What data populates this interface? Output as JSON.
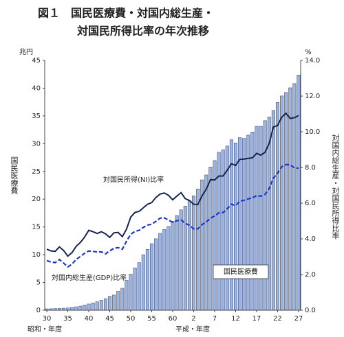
{
  "chart_data": {
    "type": "bar",
    "title": [
      "図１　国民医療費・対国内総生産・",
      "対国民所得比率の年次推移"
    ],
    "y_unit": "兆円",
    "y2_unit": "%",
    "y_label": "国民医療費",
    "y2_label": "対国内総生産・対国民所得比率",
    "x_labels": [
      "昭和・年度",
      "平成・年度"
    ],
    "categories": [
      "30",
      null,
      null,
      null,
      null,
      "35",
      null,
      null,
      null,
      null,
      "40",
      null,
      null,
      null,
      null,
      "45",
      null,
      null,
      null,
      null,
      "50",
      null,
      null,
      null,
      null,
      "55",
      null,
      null,
      null,
      null,
      "60",
      null,
      null,
      null,
      null,
      "2",
      null,
      null,
      null,
      null,
      "7",
      null,
      null,
      null,
      null,
      "12",
      null,
      null,
      null,
      null,
      "17",
      null,
      null,
      null,
      null,
      "22",
      null,
      null,
      null,
      null,
      "27"
    ],
    "ylim": [
      0,
      45
    ],
    "yticks": [
      0,
      5,
      10,
      15,
      20,
      25,
      30,
      35,
      40,
      45
    ],
    "y2lim": [
      0,
      14
    ],
    "y2ticks": [
      {
        "value": 0,
        "label": "0.0"
      },
      {
        "value": 2,
        "label": "2.0"
      },
      {
        "value": 4,
        "label": "4.0"
      },
      {
        "value": 6,
        "label": "6.0"
      },
      {
        "value": 8,
        "label": "8.0"
      },
      {
        "value": 10,
        "label": "10.0"
      },
      {
        "value": 12,
        "label": "12.0"
      },
      {
        "value": 14,
        "label": "14.0"
      }
    ],
    "series": [
      {
        "name": "国民医療費",
        "type": "bar",
        "color": "#9fb4dc",
        "values": [
          0.24,
          0.26,
          0.29,
          0.32,
          0.36,
          0.41,
          0.51,
          0.61,
          0.74,
          0.94,
          1.12,
          1.31,
          1.52,
          1.8,
          2.08,
          2.5,
          2.73,
          3.39,
          3.96,
          5.38,
          6.48,
          7.61,
          8.57,
          10.0,
          10.95,
          11.98,
          12.87,
          13.84,
          14.54,
          15.09,
          16.02,
          17.07,
          18.08,
          18.75,
          19.73,
          20.61,
          21.83,
          23.48,
          24.36,
          25.79,
          26.96,
          28.45,
          28.91,
          29.58,
          30.7,
          30.14,
          31.1,
          30.95,
          31.54,
          32.11,
          33.13,
          33.13,
          34.14,
          34.81,
          36.0,
          37.42,
          38.59,
          39.21,
          40.06,
          40.81,
          42.36
        ]
      },
      {
        "name": "対国民所得(NI)比率",
        "type": "line",
        "axis": "y2",
        "color": "#14234f",
        "dashed": false,
        "values": [
          3.42,
          3.32,
          3.3,
          3.55,
          3.35,
          3.03,
          3.23,
          3.58,
          3.8,
          4.1,
          4.48,
          4.4,
          4.3,
          4.4,
          4.28,
          4.08,
          4.34,
          4.36,
          4.12,
          4.55,
          5.22,
          5.48,
          5.54,
          5.74,
          5.94,
          6.03,
          6.32,
          6.51,
          6.57,
          6.44,
          6.19,
          6.4,
          6.59,
          6.25,
          6.15,
          5.94,
          5.92,
          6.41,
          6.79,
          7.32,
          7.3,
          7.52,
          7.52,
          7.85,
          8.21,
          8.12,
          8.45,
          8.47,
          8.51,
          8.54,
          8.79,
          8.69,
          8.85,
          9.35,
          10.27,
          10.35,
          10.82,
          11.04,
          10.75,
          10.79,
          10.91
        ]
      },
      {
        "name": "対国内総生産(GDP)比率",
        "type": "line",
        "axis": "y2",
        "color": "#1f35c8",
        "dashed": true,
        "values": [
          2.78,
          2.7,
          2.67,
          2.84,
          2.64,
          2.43,
          2.58,
          2.85,
          3.01,
          3.19,
          3.32,
          3.3,
          3.26,
          3.27,
          3.16,
          3.33,
          3.47,
          3.51,
          3.42,
          3.87,
          4.25,
          4.42,
          4.48,
          4.64,
          4.77,
          4.82,
          4.98,
          5.16,
          5.18,
          5.05,
          4.93,
          5.02,
          5.06,
          4.87,
          4.76,
          4.56,
          4.56,
          4.8,
          4.94,
          5.16,
          5.28,
          5.46,
          5.47,
          5.69,
          5.94,
          5.86,
          6.11,
          6.16,
          6.24,
          6.3,
          6.42,
          6.39,
          6.49,
          6.82,
          7.4,
          7.68,
          8.04,
          8.16,
          8.15,
          7.98,
          7.96
        ]
      }
    ]
  }
}
